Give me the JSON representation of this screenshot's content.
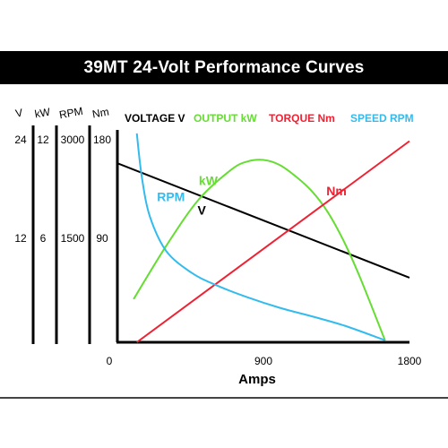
{
  "title": "39MT 24-Volt Performance Curves",
  "chart_data": {
    "type": "line",
    "title": "39MT 24-Volt Performance Curves",
    "xlabel": "Amps",
    "xlim": [
      0,
      1800
    ],
    "xticks": [
      "0",
      "900",
      "1800"
    ],
    "scales": [
      {
        "header": "V",
        "ticks": [
          "24",
          "12"
        ],
        "values": [
          24,
          12
        ]
      },
      {
        "header": "kW",
        "ticks": [
          "12",
          "6"
        ],
        "values": [
          12,
          6
        ]
      },
      {
        "header": "RPM",
        "ticks": [
          "3000",
          "1500"
        ],
        "values": [
          3000,
          1500
        ]
      },
      {
        "header": "Nm",
        "ticks": [
          "180",
          "90"
        ],
        "values": [
          180,
          90
        ]
      }
    ],
    "legend": [
      {
        "label": "VOLTAGE V",
        "color": "#000000"
      },
      {
        "label": "OUTPUT kW",
        "color": "#66dd33"
      },
      {
        "label": "TORQUE Nm",
        "color": "#ee2233"
      },
      {
        "label": "SPEED RPM",
        "color": "#33bbee"
      }
    ],
    "series": [
      {
        "name": "V",
        "unit": "V",
        "max": 24,
        "color": "#000000",
        "x": [
          0,
          1800
        ],
        "y": [
          21.6,
          7.8
        ]
      },
      {
        "name": "kW",
        "unit": "kW",
        "max": 12,
        "color": "#66dd33",
        "x": [
          100,
          300,
          500,
          700,
          800,
          900,
          1000,
          1100,
          1200,
          1300,
          1400,
          1500,
          1650
        ],
        "y": [
          2.6,
          5.8,
          8.6,
          10.4,
          10.9,
          11.0,
          10.7,
          10.0,
          9.1,
          7.8,
          6.0,
          3.8,
          0.1
        ]
      },
      {
        "name": "Nm",
        "unit": "Nm",
        "max": 180,
        "color": "#ee2233",
        "x": [
          120,
          1800
        ],
        "y": [
          0,
          182
        ]
      },
      {
        "name": "RPM",
        "unit": "RPM",
        "max": 3000,
        "color": "#33bbee",
        "x": [
          120,
          150,
          200,
          300,
          450,
          600,
          800,
          1000,
          1200,
          1400,
          1650
        ],
        "y": [
          3150,
          2500,
          1900,
          1380,
          1060,
          870,
          680,
          520,
          390,
          250,
          30
        ]
      }
    ],
    "curve_labels": [
      {
        "text": "V",
        "color": "#000000",
        "x": 520,
        "y": 15.4,
        "unit": "V"
      },
      {
        "text": "Nm",
        "color": "#ee2233",
        "x": 1350,
        "y": 133,
        "unit": "Nm"
      },
      {
        "text": "RPM",
        "color": "#33bbee",
        "x": 330,
        "y": 2130,
        "unit": "RPM"
      },
      {
        "text": "kW",
        "color": "#66dd33",
        "x": 560,
        "y": 9.5,
        "unit": "kW"
      }
    ]
  }
}
